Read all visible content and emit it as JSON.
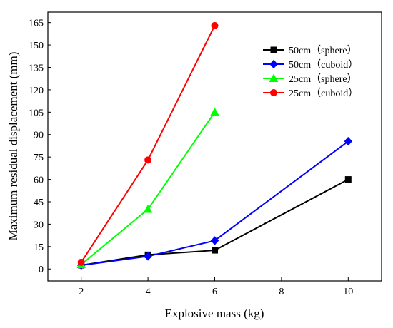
{
  "chart_data": {
    "type": "line",
    "xlabel": "Explosive mass (kg)",
    "ylabel": "Maximum residual displacement (mm)",
    "xlim": [
      1,
      11
    ],
    "ylim": [
      -8,
      172
    ],
    "xticks": [
      2,
      4,
      6,
      8,
      10
    ],
    "yticks": [
      0,
      15,
      30,
      45,
      60,
      75,
      90,
      105,
      120,
      135,
      150,
      165
    ],
    "grid": false,
    "legend_position": "top-right",
    "series": [
      {
        "name": "50cm（sphere）",
        "color": "#000000",
        "marker": "square",
        "x": [
          2,
          4,
          6,
          10
        ],
        "y": [
          2.5,
          9.5,
          12.5,
          60
        ]
      },
      {
        "name": "50cm（cuboid）",
        "color": "#0000ff",
        "marker": "diamond",
        "x": [
          2,
          4,
          6,
          10
        ],
        "y": [
          2.5,
          8.5,
          19,
          85.5
        ]
      },
      {
        "name": "25cm（sphere）",
        "color": "#00ff00",
        "marker": "triangle",
        "x": [
          2,
          4,
          6
        ],
        "y": [
          3,
          40,
          105
        ]
      },
      {
        "name": "25cm（cuboid）",
        "color": "#ff0000",
        "marker": "circle",
        "x": [
          2,
          4,
          6
        ],
        "y": [
          4.5,
          73,
          163
        ]
      }
    ]
  }
}
